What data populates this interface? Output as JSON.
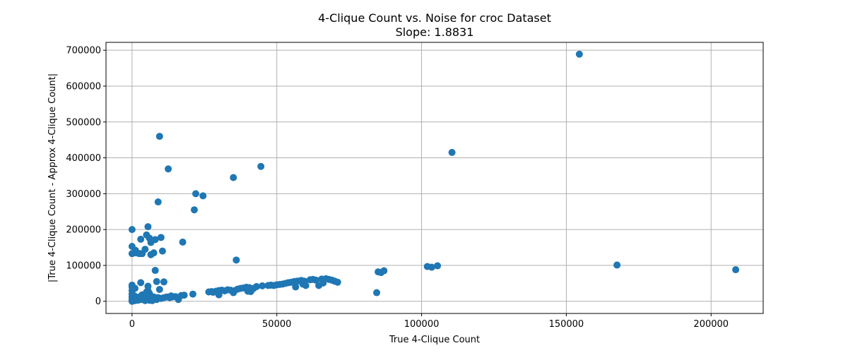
{
  "chart_data": {
    "type": "scatter",
    "title": "4-Clique Count vs. Noise for croc Dataset",
    "subtitle": "Slope: 1.8831",
    "xlabel": "True 4-Clique Count",
    "ylabel": "|True 4-Clique Count - Approx 4-Clique Count|",
    "xlim": [
      -9000,
      218000
    ],
    "ylim": [
      -34000,
      722000
    ],
    "xticks": [
      0,
      50000,
      100000,
      150000,
      200000
    ],
    "xtick_labels": [
      "0",
      "50000",
      "100000",
      "150000",
      "200000"
    ],
    "yticks": [
      0,
      100000,
      200000,
      300000,
      400000,
      500000,
      600000,
      700000
    ],
    "ytick_labels": [
      "0",
      "100000",
      "200000",
      "300000",
      "400000",
      "500000",
      "600000",
      "700000"
    ],
    "grid": true,
    "marker_color": "#1f77b4",
    "series": [
      {
        "points": [
          [
            0,
            200000
          ],
          [
            0,
            153000
          ],
          [
            0,
            133000
          ],
          [
            0,
            45000
          ],
          [
            0,
            40000
          ],
          [
            0,
            30000
          ],
          [
            0,
            20000
          ],
          [
            0,
            12000
          ],
          [
            0,
            5000
          ],
          [
            0,
            0
          ],
          [
            500,
            8000
          ],
          [
            800,
            15000
          ],
          [
            1000,
            36000
          ],
          [
            1000,
            2000
          ],
          [
            1200,
            142000
          ],
          [
            1500,
            135000
          ],
          [
            1500,
            6000
          ],
          [
            2000,
            10000
          ],
          [
            2000,
            3000
          ],
          [
            2500,
            133000
          ],
          [
            2500,
            12000
          ],
          [
            3000,
            173000
          ],
          [
            3000,
            52000
          ],
          [
            3000,
            5000
          ],
          [
            3500,
            133000
          ],
          [
            3500,
            18000
          ],
          [
            4000,
            8000
          ],
          [
            4500,
            145000
          ],
          [
            4500,
            15000
          ],
          [
            4500,
            2000
          ],
          [
            5000,
            185000
          ],
          [
            5000,
            26000
          ],
          [
            5000,
            10000
          ],
          [
            5500,
            208000
          ],
          [
            5500,
            42000
          ],
          [
            5500,
            30000
          ],
          [
            5500,
            6000
          ],
          [
            6000,
            176000
          ],
          [
            6000,
            22000
          ],
          [
            6000,
            3000
          ],
          [
            6500,
            164000
          ],
          [
            6500,
            130000
          ],
          [
            6500,
            14000
          ],
          [
            7000,
            8000
          ],
          [
            7000,
            2000
          ],
          [
            7500,
            135000
          ],
          [
            7500,
            12000
          ],
          [
            8000,
            86000
          ],
          [
            8000,
            172000
          ],
          [
            8500,
            55000
          ],
          [
            8500,
            5000
          ],
          [
            9000,
            277000
          ],
          [
            9000,
            10000
          ],
          [
            9500,
            33000
          ],
          [
            9500,
            460000
          ],
          [
            10000,
            178000
          ],
          [
            10000,
            8000
          ],
          [
            10500,
            140000
          ],
          [
            11000,
            54000
          ],
          [
            11000,
            10000
          ],
          [
            12000,
            12000
          ],
          [
            12500,
            369000
          ],
          [
            13000,
            10000
          ],
          [
            13500,
            15000
          ],
          [
            14000,
            12000
          ],
          [
            15000,
            13000
          ],
          [
            16000,
            5000
          ],
          [
            17000,
            16000
          ],
          [
            17500,
            165000
          ],
          [
            18000,
            17000
          ],
          [
            21000,
            20000
          ],
          [
            21500,
            255000
          ],
          [
            22000,
            300000
          ],
          [
            24500,
            294000
          ],
          [
            26500,
            26000
          ],
          [
            27500,
            27000
          ],
          [
            28000,
            25000
          ],
          [
            29000,
            28000
          ],
          [
            30000,
            30000
          ],
          [
            30000,
            18000
          ],
          [
            31000,
            31000
          ],
          [
            32000,
            29000
          ],
          [
            33000,
            32000
          ],
          [
            34000,
            31000
          ],
          [
            35000,
            24000
          ],
          [
            35000,
            345000
          ],
          [
            35500,
            30000
          ],
          [
            36000,
            115000
          ],
          [
            36500,
            34000
          ],
          [
            37500,
            36000
          ],
          [
            38500,
            37000
          ],
          [
            39500,
            39000
          ],
          [
            40000,
            28000
          ],
          [
            40500,
            38000
          ],
          [
            41000,
            27000
          ],
          [
            42000,
            36000
          ],
          [
            43000,
            41000
          ],
          [
            44500,
            376000
          ],
          [
            45000,
            43000
          ],
          [
            47000,
            44000
          ],
          [
            48000,
            45000
          ],
          [
            49000,
            44000
          ],
          [
            50000,
            46000
          ],
          [
            51000,
            47000
          ],
          [
            52000,
            48000
          ],
          [
            53000,
            50000
          ],
          [
            54000,
            52000
          ],
          [
            55000,
            53000
          ],
          [
            56000,
            55000
          ],
          [
            56500,
            40000
          ],
          [
            57000,
            56000
          ],
          [
            58000,
            57000
          ],
          [
            58500,
            58000
          ],
          [
            59000,
            48000
          ],
          [
            59500,
            56000
          ],
          [
            60000,
            44000
          ],
          [
            61500,
            60000
          ],
          [
            62500,
            61000
          ],
          [
            63500,
            59000
          ],
          [
            64500,
            44000
          ],
          [
            65500,
            62000
          ],
          [
            66000,
            51000
          ],
          [
            67000,
            63000
          ],
          [
            68000,
            61000
          ],
          [
            69000,
            59000
          ],
          [
            70000,
            56000
          ],
          [
            71000,
            53000
          ],
          [
            84500,
            24000
          ],
          [
            85000,
            82000
          ],
          [
            86000,
            80000
          ],
          [
            87000,
            85000
          ],
          [
            102000,
            97000
          ],
          [
            103500,
            95000
          ],
          [
            105500,
            99000
          ],
          [
            110500,
            415000
          ],
          [
            154500,
            689000
          ],
          [
            167500,
            101000
          ],
          [
            208500,
            88000
          ]
        ]
      }
    ]
  }
}
